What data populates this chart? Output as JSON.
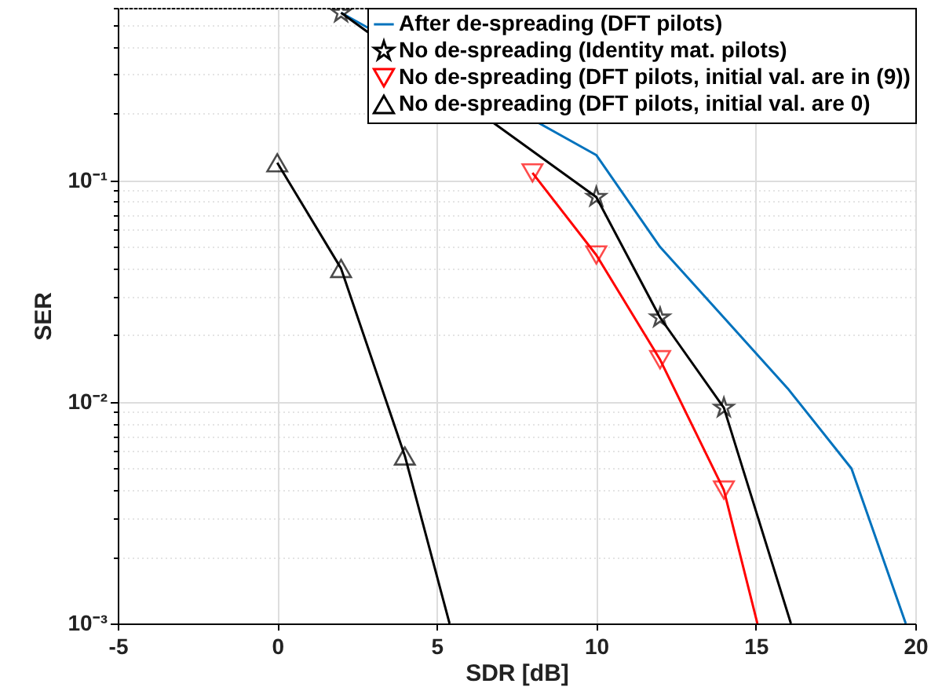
{
  "chart_data": {
    "type": "line",
    "xlabel": "SDR [dB]",
    "ylabel": "SER",
    "log": "y",
    "grid": true,
    "legend": "top right",
    "xlim": [
      -5,
      20
    ],
    "xticks": [
      -5,
      0,
      5,
      10,
      15,
      20
    ],
    "ylim": [
      0.001,
      0.6
    ],
    "yticks": [
      {
        "value": 0.001,
        "label": "10⁻³"
      },
      {
        "value": 0.002,
        "label": null
      },
      {
        "value": 0.003,
        "label": null
      },
      {
        "value": 0.004,
        "label": null
      },
      {
        "value": 0.005,
        "label": null
      },
      {
        "value": 0.006,
        "label": null
      },
      {
        "value": 0.007,
        "label": null
      },
      {
        "value": 0.008,
        "label": null
      },
      {
        "value": 0.009,
        "label": null
      },
      {
        "value": 0.01,
        "label": "10⁻²"
      },
      {
        "value": 0.02,
        "label": null
      },
      {
        "value": 0.03,
        "label": null
      },
      {
        "value": 0.04,
        "label": null
      },
      {
        "value": 0.05,
        "label": null
      },
      {
        "value": 0.06,
        "label": null
      },
      {
        "value": 0.07,
        "label": null
      },
      {
        "value": 0.08,
        "label": null
      },
      {
        "value": 0.09,
        "label": null
      },
      {
        "value": 0.1,
        "label": "10⁻¹"
      },
      {
        "value": 0.2,
        "label": null
      },
      {
        "value": 0.3,
        "label": null
      },
      {
        "value": 0.4,
        "label": null
      },
      {
        "value": 0.5,
        "label": null
      },
      {
        "value": 0.6,
        "label": null
      }
    ],
    "series": [
      {
        "name": "After de-spreading (DFT pilots)",
        "color": "#0072bd",
        "marker": "none",
        "x": [
          2,
          10,
          12,
          14,
          16,
          18,
          19.7
        ],
        "values": [
          0.57,
          0.13,
          0.05,
          0.024,
          0.0115,
          0.005,
          0.001
        ]
      },
      {
        "name": "No de-spreading (Identity mat. pilots)",
        "color": "#000000",
        "marker": "star",
        "x": [
          2,
          10,
          12,
          14,
          16.1
        ],
        "values": [
          0.57,
          0.084,
          0.024,
          0.0094,
          0.001
        ]
      },
      {
        "name": "No de-spreading (DFT pilots, initial val. are in (9))",
        "color": "#ff0000",
        "marker": "triangle-down",
        "x": [
          8,
          10,
          12,
          14,
          15.05
        ],
        "values": [
          0.108,
          0.046,
          0.0155,
          0.004,
          0.001
        ]
      },
      {
        "name": "No de-spreading (DFT pilots, initial val. are 0)",
        "color": "#000000",
        "marker": "triangle",
        "x": [
          0,
          2,
          4,
          5.4
        ],
        "values": [
          0.12,
          0.04,
          0.0057,
          0.001
        ]
      }
    ]
  }
}
